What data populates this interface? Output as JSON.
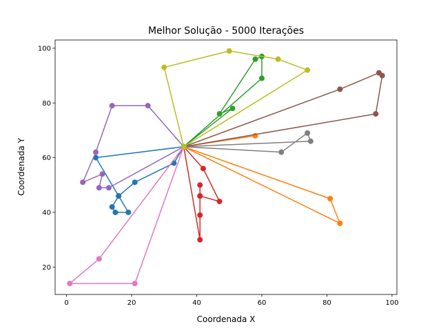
{
  "chart_data": {
    "type": "line",
    "title": "Melhor Solução - 5000 Iterações",
    "xlabel": "Coordenada X",
    "ylabel": "Coordenada Y",
    "xlim": [
      -3.5,
      101.5
    ],
    "ylim": [
      10,
      103
    ],
    "xticks": [
      0,
      20,
      40,
      60,
      80,
      100
    ],
    "yticks": [
      20,
      40,
      60,
      80,
      100
    ],
    "grid": false,
    "legend": "none",
    "depot": [
      36,
      64
    ],
    "series": [
      {
        "color": "#1f77b4",
        "points": [
          [
            36,
            64
          ],
          [
            33,
            58
          ],
          [
            21,
            51
          ],
          [
            16,
            46
          ],
          [
            19,
            40
          ],
          [
            15,
            40
          ],
          [
            14,
            42
          ],
          [
            16,
            46
          ],
          [
            9,
            60
          ],
          [
            36,
            64
          ]
        ]
      },
      {
        "color": "#ff7f0e",
        "points": [
          [
            36,
            64
          ],
          [
            58,
            68
          ],
          [
            36,
            64
          ],
          [
            81,
            45
          ],
          [
            84,
            36
          ],
          [
            36,
            64
          ]
        ]
      },
      {
        "color": "#2ca02c",
        "points": [
          [
            36,
            64
          ],
          [
            51,
            78
          ],
          [
            47,
            76
          ],
          [
            58,
            96
          ],
          [
            60,
            97
          ],
          [
            60,
            89
          ],
          [
            36,
            64
          ]
        ]
      },
      {
        "color": "#d62728",
        "points": [
          [
            36,
            64
          ],
          [
            42,
            56
          ],
          [
            47,
            44
          ],
          [
            41,
            46
          ],
          [
            41,
            50
          ],
          [
            41,
            46
          ],
          [
            41,
            39
          ],
          [
            41,
            30
          ],
          [
            36,
            64
          ]
        ]
      },
      {
        "color": "#9467bd",
        "points": [
          [
            36,
            64
          ],
          [
            25,
            79
          ],
          [
            14,
            79
          ],
          [
            9,
            62
          ],
          [
            5,
            51
          ],
          [
            11,
            54
          ],
          [
            10,
            49
          ],
          [
            13,
            49
          ],
          [
            36,
            64
          ]
        ]
      },
      {
        "color": "#8c564b",
        "points": [
          [
            36,
            64
          ],
          [
            84,
            85
          ],
          [
            96,
            91
          ],
          [
            97,
            90
          ],
          [
            95,
            76
          ],
          [
            36,
            64
          ]
        ]
      },
      {
        "color": "#e377c2",
        "points": [
          [
            36,
            64
          ],
          [
            10,
            23
          ],
          [
            1,
            14
          ],
          [
            21,
            14
          ],
          [
            36,
            64
          ]
        ]
      },
      {
        "color": "#7f7f7f",
        "points": [
          [
            36,
            64
          ],
          [
            66,
            62
          ],
          [
            74,
            69
          ],
          [
            75,
            66
          ],
          [
            36,
            64
          ]
        ]
      },
      {
        "color": "#bcbd22",
        "points": [
          [
            36,
            64
          ],
          [
            30,
            93
          ],
          [
            50,
            99
          ],
          [
            65,
            96
          ],
          [
            74,
            92
          ],
          [
            36,
            64
          ]
        ]
      }
    ]
  }
}
